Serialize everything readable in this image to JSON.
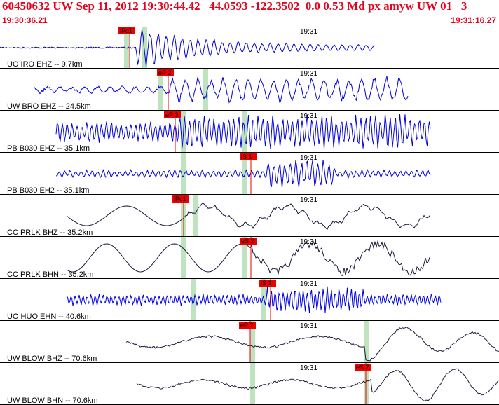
{
  "header": {
    "title": "60450632 UW Sep 11, 2012 19:30:44.42   44.0593 -122.3502  0.0 0.53 Md px amyw UW 01   3",
    "start_time": "19:30:36.21",
    "end_time": "19:31:16.27"
  },
  "colors": {
    "header_text": "#e8001c",
    "pick_box": "#ee0000",
    "trace_blue": "#0000dd",
    "trace_black": "#1a1a3a",
    "pick_bar": "#bfe3bf"
  },
  "traces": [
    {
      "label": "UO IRO EHZ -- 9.7km",
      "time_label": "19:31",
      "pick": "iPd1",
      "color": "blue",
      "kind": "burst-early"
    },
    {
      "label": "UW BRO EHZ -- 24.5km",
      "time_label": "19:31",
      "pick": "eP 2",
      "color": "blue",
      "kind": "noisy-burst"
    },
    {
      "label": "PB B030 EHZ -- 35.1km",
      "time_label": "19:31",
      "pick": "eP 3",
      "color": "blue",
      "kind": "dense"
    },
    {
      "label": "PB B030 EH2 -- 35.1km",
      "time_label": "19:31",
      "pick": "iS 1",
      "color": "blue",
      "kind": "noise-burst"
    },
    {
      "label": "CC PRLK BHZ -- 35.2km",
      "time_label": "19:31",
      "pick": "iPc1",
      "color": "black",
      "kind": "longwave"
    },
    {
      "label": "CC PRLK BHN -- 35.2km",
      "time_label": "19:31",
      "pick": "eS 2",
      "color": "black",
      "kind": "longwave2"
    },
    {
      "label": "UO HUO EHN -- 40.6km",
      "time_label": "19:31",
      "pick": "iS 1",
      "color": "blue",
      "kind": "dense2"
    },
    {
      "label": "UW BLOW BHZ -- 70.6km",
      "time_label": "19:31",
      "pick": "eP 2",
      "color": "black",
      "kind": "slow"
    },
    {
      "label": "UW BLOW BHN -- 70.6km",
      "time_label": "19:31",
      "pick": "eS 2",
      "color": "black",
      "kind": "slow2"
    }
  ]
}
